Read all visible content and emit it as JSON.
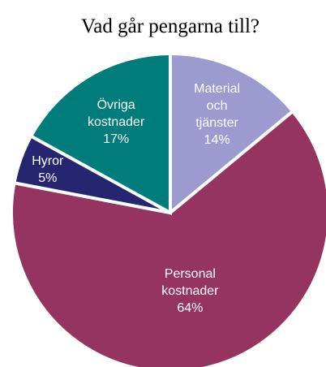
{
  "chart_data": {
    "type": "pie",
    "title": "Vad går pengarna till?",
    "categories": [
      "Material och tjänster",
      "Personal kostnader",
      "Hyror",
      "Övriga kostnader"
    ],
    "values": [
      14,
      64,
      5,
      17
    ],
    "value_labels": [
      "14%",
      "64%",
      "5%",
      "17%"
    ],
    "colors": [
      "#9b9bd0",
      "#963460",
      "#262670",
      "#007d7a"
    ]
  }
}
